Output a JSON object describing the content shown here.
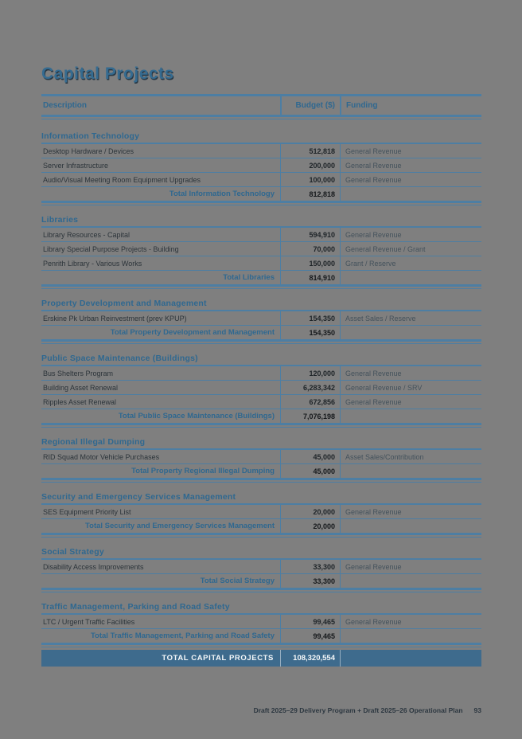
{
  "page": {
    "title": "Capital Projects",
    "footer": {
      "text": "Draft 2025–29 Delivery Program + Draft 2025–26 Operational Plan",
      "page_number": "93"
    }
  },
  "table": {
    "columns": [
      "Description",
      "Budget ($)",
      "Funding"
    ],
    "sections": [
      {
        "name": "Information Technology",
        "rows": [
          {
            "description": "Desktop Hardware / Devices",
            "budget": "512,818",
            "funding": "General Revenue"
          },
          {
            "description": "Server Infrastructure",
            "budget": "200,000",
            "funding": "General Revenue"
          },
          {
            "description": "Audio/Visual Meeting Room Equipment Upgrades",
            "budget": "100,000",
            "funding": "General Revenue"
          }
        ],
        "total_label": "Total Information Technology",
        "total": "812,818"
      },
      {
        "name": "Libraries",
        "rows": [
          {
            "description": "Library Resources - Capital",
            "budget": "594,910",
            "funding": "General Revenue"
          },
          {
            "description": "Library Special Purpose Projects - Building",
            "budget": "70,000",
            "funding": "General Revenue / Grant"
          },
          {
            "description": "Penrith Library - Various Works",
            "budget": "150,000",
            "funding": "Grant / Reserve"
          }
        ],
        "total_label": "Total Libraries",
        "total": "814,910"
      },
      {
        "name": "Property Development and Management",
        "rows": [
          {
            "description": "Erskine Pk Urban Reinvestment (prev KPUP)",
            "budget": "154,350",
            "funding": "Asset Sales / Reserve"
          }
        ],
        "total_label": "Total Property Development and Management",
        "total": "154,350"
      },
      {
        "name": "Public Space Maintenance (Buildings)",
        "rows": [
          {
            "description": "Bus Shelters Program",
            "budget": "120,000",
            "funding": "General Revenue"
          },
          {
            "description": "Building Asset Renewal",
            "budget": "6,283,342",
            "funding": "General Revenue / SRV"
          },
          {
            "description": "Ripples Asset Renewal",
            "budget": "672,856",
            "funding": "General Revenue"
          }
        ],
        "total_label": "Total Public Space Maintenance (Buildings)",
        "total": "7,076,198"
      },
      {
        "name": "Regional Illegal Dumping",
        "rows": [
          {
            "description": "RID Squad Motor Vehicle Purchases",
            "budget": "45,000",
            "funding": "Asset Sales/Contribution"
          }
        ],
        "total_label": "Total Property Regional Illegal Dumping",
        "total": "45,000"
      },
      {
        "name": "Security and Emergency Services Management",
        "rows": [
          {
            "description": "SES Equipment Priority List",
            "budget": "20,000",
            "funding": "General Revenue"
          }
        ],
        "total_label": "Total Security and Emergency Services Management",
        "total": "20,000"
      },
      {
        "name": "Social Strategy",
        "rows": [
          {
            "description": "Disability Access Improvements",
            "budget": "33,300",
            "funding": "General Revenue"
          }
        ],
        "total_label": "Total Social Strategy",
        "total": "33,300"
      },
      {
        "name": "Traffic Management, Parking and Road Safety",
        "rows": [
          {
            "description": "LTC / Urgent Traffic Facilities",
            "budget": "99,465",
            "funding": "General Revenue"
          }
        ],
        "total_label": "Total Traffic Management, Parking and Road Safety",
        "total": "99,465"
      }
    ],
    "grand_total_label": "TOTAL CAPITAL PROJECTS",
    "grand_total": "108,320,554"
  },
  "colors": {
    "page_background": "#7f7f7f",
    "rule_blue": "#4d7ea3",
    "heading_blue": "#2f6890",
    "grand_total_bar": "#3e6b8d"
  }
}
